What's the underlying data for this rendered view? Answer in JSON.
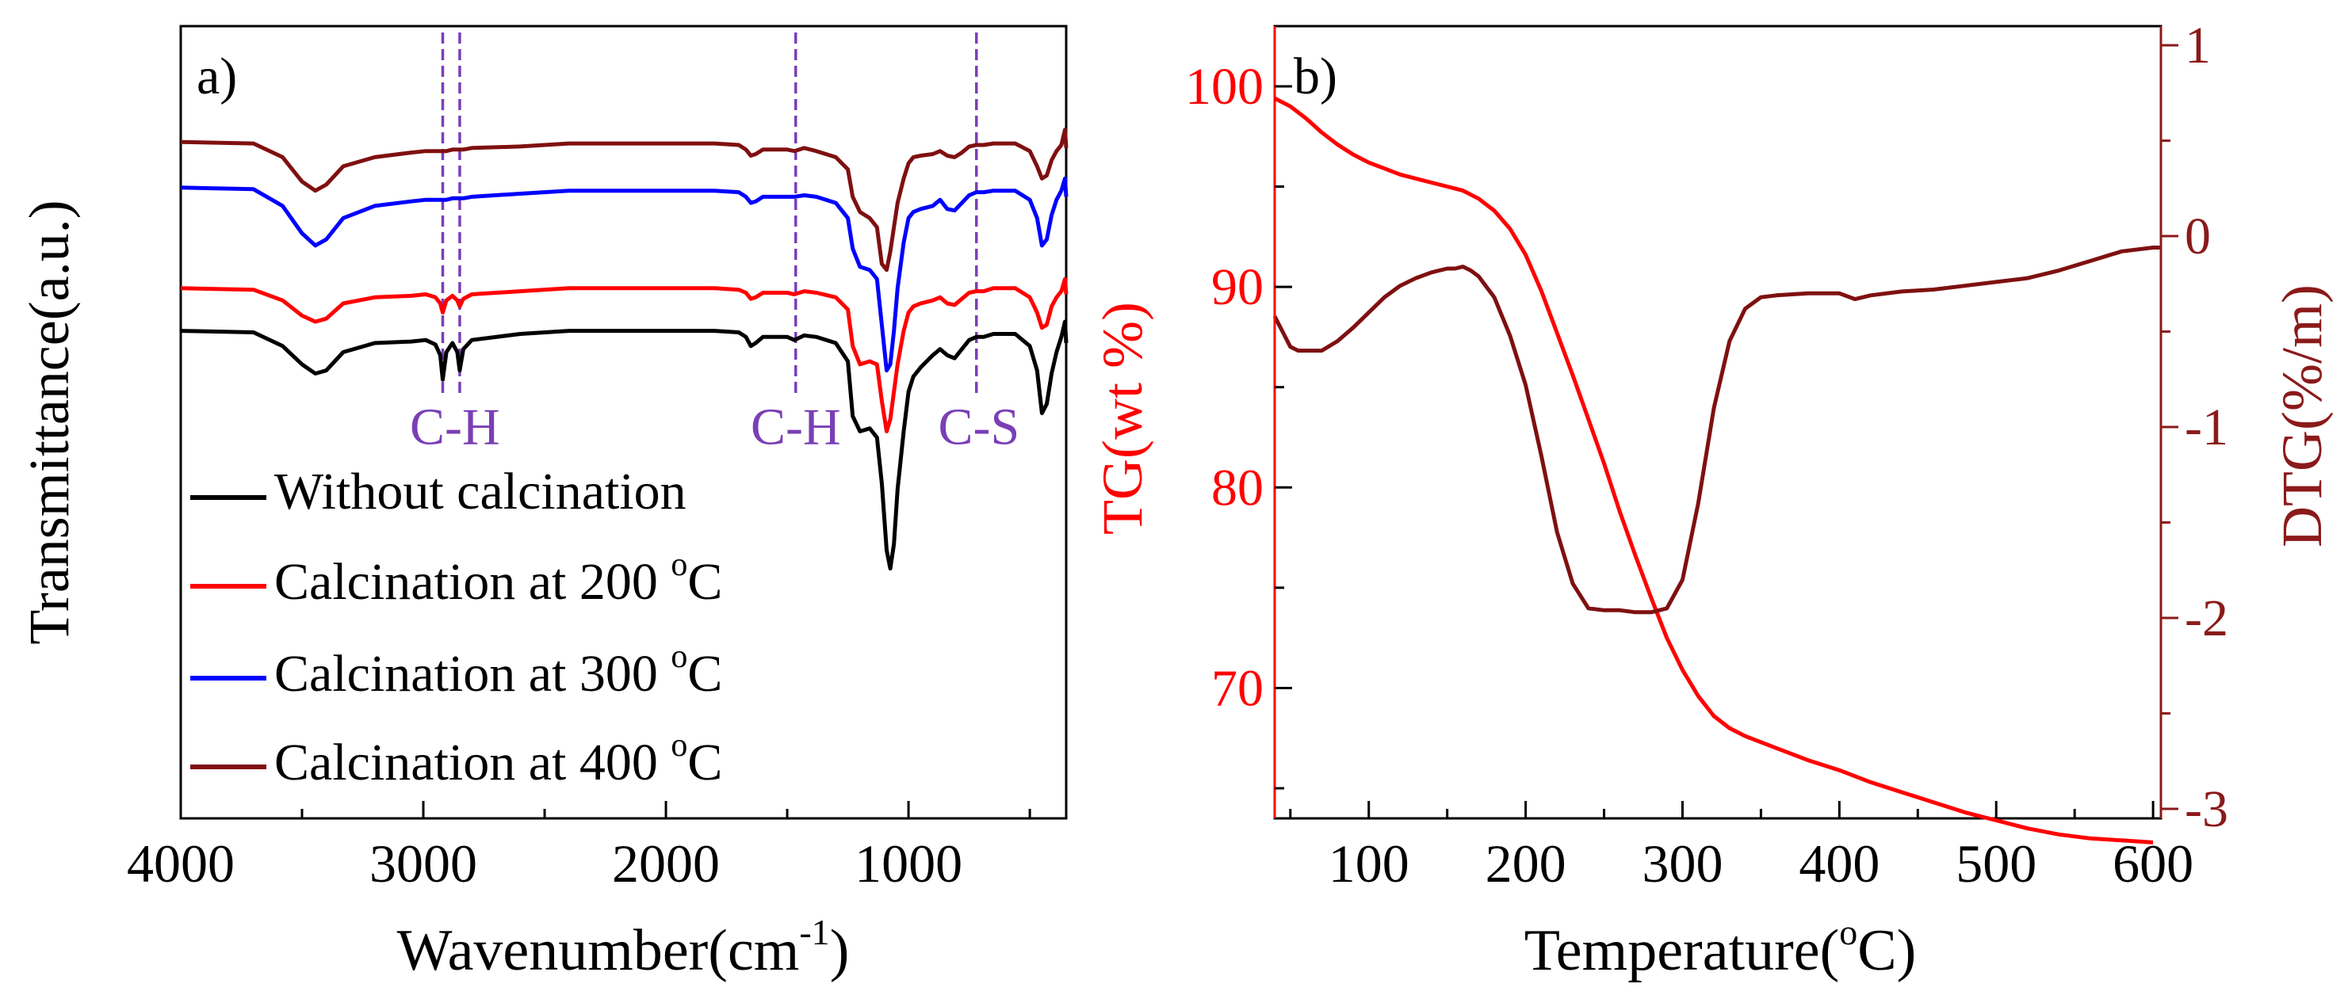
{
  "chart_data": [
    {
      "type": "line",
      "panel_label": "a)",
      "xlabel": "Wavenumber(cm",
      "xlabel_sup": "-1",
      "xlabel_close": ")",
      "ylabel": "Transmittance(a.u.)",
      "xlim": [
        4000,
        350
      ],
      "x_reversed": true,
      "y_ticks_shown": false,
      "xticks": [
        4000,
        3000,
        2000,
        1000
      ],
      "xtick_labels": [
        "4000",
        "3000",
        "2000",
        "1000"
      ],
      "ylim": [
        -1.6,
        1.0
      ],
      "legend_location": "bottom-left",
      "annotations": [
        {
          "text": "C-H",
          "x": 2870,
          "lines_at": [
            2920,
            2850
          ],
          "y": -0.33
        },
        {
          "text": "C-H",
          "x": 1465,
          "lines_at": [
            1465
          ],
          "y": -0.33
        },
        {
          "text": "C-S",
          "x": 710,
          "lines_at": [
            720
          ],
          "y": -0.33
        }
      ],
      "vline_color": "#7a3fb6",
      "series": [
        {
          "name": "Without calcination",
          "legend_label": "Without calcination",
          "color": "#000000",
          "offset": 0.0,
          "x": [
            4000,
            3700,
            3580,
            3500,
            3445,
            3400,
            3330,
            3200,
            3050,
            2990,
            2950,
            2930,
            2920,
            2905,
            2880,
            2860,
            2850,
            2835,
            2800,
            2600,
            2400,
            2000,
            1800,
            1700,
            1670,
            1650,
            1630,
            1600,
            1500,
            1470,
            1430,
            1380,
            1300,
            1250,
            1230,
            1200,
            1160,
            1130,
            1110,
            1090,
            1075,
            1060,
            1045,
            1020,
            1000,
            980,
            950,
            900,
            870,
            840,
            810,
            780,
            750,
            720,
            690,
            650,
            560,
            500,
            470,
            450,
            430,
            410,
            390,
            370,
            355,
            350
          ],
          "y": [
            0.0,
            -0.005,
            -0.05,
            -0.11,
            -0.14,
            -0.13,
            -0.07,
            -0.04,
            -0.035,
            -0.03,
            -0.045,
            -0.08,
            -0.16,
            -0.07,
            -0.04,
            -0.07,
            -0.13,
            -0.06,
            -0.03,
            -0.01,
            0.0,
            0.0,
            0.0,
            -0.005,
            -0.02,
            -0.05,
            -0.04,
            -0.02,
            -0.02,
            -0.03,
            -0.015,
            -0.02,
            -0.04,
            -0.1,
            -0.28,
            -0.33,
            -0.32,
            -0.35,
            -0.5,
            -0.72,
            -0.78,
            -0.7,
            -0.52,
            -0.33,
            -0.2,
            -0.15,
            -0.12,
            -0.08,
            -0.06,
            -0.08,
            -0.09,
            -0.06,
            -0.03,
            -0.02,
            -0.02,
            -0.01,
            -0.01,
            -0.05,
            -0.13,
            -0.27,
            -0.24,
            -0.14,
            -0.07,
            -0.02,
            0.03,
            -0.04
          ]
        },
        {
          "name": "Calcination at 200 °C",
          "legend_label": "Calcination at 200 ",
          "color": "#ff0000",
          "offset": 0.14,
          "x": [
            4000,
            3700,
            3580,
            3500,
            3445,
            3400,
            3330,
            3200,
            3050,
            2990,
            2950,
            2930,
            2920,
            2905,
            2880,
            2860,
            2850,
            2835,
            2800,
            2600,
            2400,
            2000,
            1800,
            1700,
            1670,
            1650,
            1630,
            1600,
            1500,
            1470,
            1430,
            1380,
            1300,
            1250,
            1230,
            1200,
            1160,
            1130,
            1110,
            1090,
            1075,
            1060,
            1045,
            1020,
            1000,
            980,
            950,
            900,
            870,
            840,
            810,
            780,
            750,
            720,
            690,
            650,
            560,
            500,
            470,
            450,
            430,
            410,
            390,
            370,
            355,
            350
          ],
          "y": [
            0.0,
            -0.005,
            -0.04,
            -0.09,
            -0.11,
            -0.1,
            -0.05,
            -0.03,
            -0.025,
            -0.02,
            -0.03,
            -0.05,
            -0.08,
            -0.04,
            -0.025,
            -0.04,
            -0.06,
            -0.035,
            -0.02,
            -0.01,
            0.0,
            0.0,
            0.0,
            -0.005,
            -0.015,
            -0.035,
            -0.03,
            -0.015,
            -0.015,
            -0.02,
            -0.01,
            -0.015,
            -0.03,
            -0.07,
            -0.19,
            -0.25,
            -0.24,
            -0.25,
            -0.37,
            -0.47,
            -0.43,
            -0.34,
            -0.25,
            -0.14,
            -0.08,
            -0.06,
            -0.05,
            -0.04,
            -0.03,
            -0.05,
            -0.055,
            -0.035,
            -0.015,
            -0.01,
            -0.01,
            0.0,
            0.0,
            -0.03,
            -0.08,
            -0.13,
            -0.12,
            -0.06,
            -0.03,
            -0.01,
            0.03,
            -0.02
          ]
        },
        {
          "name": "Calcination at 300 °C",
          "legend_label": "Calcination at 300 ",
          "color": "#0000ff",
          "offset": 0.47,
          "x": [
            4000,
            3700,
            3580,
            3500,
            3445,
            3400,
            3330,
            3200,
            3050,
            2990,
            2950,
            2930,
            2920,
            2905,
            2880,
            2860,
            2850,
            2835,
            2800,
            2600,
            2400,
            2000,
            1800,
            1700,
            1670,
            1650,
            1630,
            1600,
            1500,
            1470,
            1430,
            1380,
            1300,
            1250,
            1230,
            1200,
            1160,
            1130,
            1110,
            1090,
            1075,
            1060,
            1045,
            1020,
            1000,
            980,
            950,
            900,
            870,
            840,
            810,
            780,
            750,
            720,
            690,
            650,
            560,
            500,
            470,
            450,
            430,
            410,
            390,
            370,
            355,
            350
          ],
          "y": [
            0.0,
            -0.005,
            -0.06,
            -0.15,
            -0.19,
            -0.17,
            -0.1,
            -0.06,
            -0.045,
            -0.04,
            -0.04,
            -0.04,
            -0.04,
            -0.04,
            -0.035,
            -0.035,
            -0.035,
            -0.035,
            -0.03,
            -0.02,
            -0.01,
            -0.01,
            -0.01,
            -0.015,
            -0.03,
            -0.05,
            -0.045,
            -0.03,
            -0.03,
            -0.03,
            -0.025,
            -0.03,
            -0.05,
            -0.1,
            -0.2,
            -0.26,
            -0.27,
            -0.3,
            -0.45,
            -0.6,
            -0.58,
            -0.47,
            -0.33,
            -0.18,
            -0.1,
            -0.08,
            -0.07,
            -0.06,
            -0.04,
            -0.07,
            -0.075,
            -0.05,
            -0.025,
            -0.015,
            -0.015,
            -0.01,
            -0.01,
            -0.04,
            -0.1,
            -0.19,
            -0.17,
            -0.09,
            -0.04,
            -0.01,
            0.03,
            -0.03
          ]
        },
        {
          "name": "Calcination at 400 °C",
          "legend_label": "Calcination at 400 ",
          "color": "#7f1010",
          "offset": 0.62,
          "x": [
            4000,
            3700,
            3580,
            3500,
            3445,
            3400,
            3330,
            3200,
            3050,
            2990,
            2950,
            2930,
            2920,
            2905,
            2880,
            2860,
            2850,
            2835,
            2800,
            2600,
            2400,
            2000,
            1800,
            1700,
            1670,
            1650,
            1630,
            1600,
            1500,
            1470,
            1430,
            1380,
            1300,
            1250,
            1230,
            1200,
            1160,
            1130,
            1110,
            1090,
            1075,
            1060,
            1045,
            1020,
            1000,
            980,
            950,
            900,
            870,
            840,
            810,
            780,
            750,
            720,
            690,
            650,
            560,
            500,
            470,
            450,
            430,
            410,
            390,
            370,
            355,
            350
          ],
          "y": [
            0.0,
            -0.005,
            -0.05,
            -0.13,
            -0.16,
            -0.14,
            -0.08,
            -0.05,
            -0.035,
            -0.03,
            -0.03,
            -0.03,
            -0.03,
            -0.03,
            -0.025,
            -0.025,
            -0.025,
            -0.025,
            -0.02,
            -0.015,
            -0.005,
            -0.005,
            -0.005,
            -0.01,
            -0.025,
            -0.045,
            -0.04,
            -0.025,
            -0.025,
            -0.03,
            -0.02,
            -0.03,
            -0.05,
            -0.09,
            -0.18,
            -0.23,
            -0.25,
            -0.28,
            -0.4,
            -0.42,
            -0.36,
            -0.28,
            -0.2,
            -0.12,
            -0.07,
            -0.05,
            -0.045,
            -0.04,
            -0.03,
            -0.045,
            -0.05,
            -0.035,
            -0.015,
            -0.01,
            -0.01,
            -0.005,
            -0.005,
            -0.03,
            -0.08,
            -0.12,
            -0.11,
            -0.06,
            -0.03,
            -0.01,
            0.04,
            -0.02
          ]
        }
      ]
    },
    {
      "type": "line",
      "panel_label": "b)",
      "xlabel": "Temperature(",
      "xlabel_sup": "o",
      "xlabel_close": "C)",
      "ylabel_left": "TG(wt %)",
      "ylabel_right": "DTG(%/m)",
      "xlim": [
        40,
        605
      ],
      "xticks": [
        100,
        200,
        300,
        400,
        500,
        600
      ],
      "xtick_labels": [
        "100",
        "200",
        "300",
        "400",
        "500",
        "600"
      ],
      "ylim_left": [
        63.5,
        103
      ],
      "yticks_left": [
        70,
        80,
        90,
        100
      ],
      "ytick_labels_left": [
        "70",
        "80",
        "90",
        "100"
      ],
      "ylim_right": [
        -3.05,
        1.1
      ],
      "yticks_right": [
        -3,
        -2,
        -1,
        0,
        1
      ],
      "ytick_labels_right": [
        "-3",
        "-2",
        "-1",
        "0",
        "1"
      ],
      "left_axis_color": "#ff0000",
      "right_axis_color": "#8b1a1a",
      "series": [
        {
          "name": "TG",
          "axis": "left",
          "color": "#ff0000",
          "x": [
            40,
            50,
            60,
            70,
            80,
            90,
            100,
            110,
            120,
            130,
            140,
            150,
            160,
            170,
            180,
            190,
            200,
            210,
            220,
            230,
            240,
            250,
            260,
            270,
            280,
            290,
            300,
            310,
            320,
            330,
            340,
            360,
            380,
            400,
            420,
            440,
            460,
            480,
            500,
            520,
            540,
            560,
            580,
            600
          ],
          "y": [
            99.4,
            99.0,
            98.4,
            97.7,
            97.1,
            96.6,
            96.2,
            95.9,
            95.6,
            95.4,
            95.2,
            95.0,
            94.8,
            94.4,
            93.8,
            92.9,
            91.6,
            89.8,
            87.7,
            85.6,
            83.4,
            81.2,
            78.8,
            76.6,
            74.5,
            72.5,
            70.9,
            69.6,
            68.6,
            68.0,
            67.6,
            67.0,
            66.4,
            65.9,
            65.3,
            64.8,
            64.3,
            63.8,
            63.4,
            63.0,
            62.7,
            62.5,
            62.4,
            62.3
          ]
        },
        {
          "name": "DTG",
          "axis": "right",
          "color": "#7f1010",
          "x": [
            40,
            45,
            50,
            55,
            60,
            70,
            80,
            90,
            100,
            110,
            120,
            130,
            140,
            150,
            155,
            160,
            165,
            170,
            180,
            190,
            200,
            210,
            220,
            230,
            240,
            250,
            260,
            270,
            280,
            290,
            300,
            310,
            320,
            330,
            340,
            350,
            360,
            380,
            400,
            410,
            420,
            440,
            460,
            480,
            500,
            520,
            540,
            560,
            580,
            600,
            605
          ],
          "y": [
            -0.42,
            -0.5,
            -0.58,
            -0.6,
            -0.6,
            -0.6,
            -0.55,
            -0.48,
            -0.4,
            -0.32,
            -0.26,
            -0.22,
            -0.19,
            -0.17,
            -0.17,
            -0.16,
            -0.18,
            -0.21,
            -0.32,
            -0.52,
            -0.78,
            -1.15,
            -1.55,
            -1.82,
            -1.95,
            -1.96,
            -1.96,
            -1.97,
            -1.97,
            -1.95,
            -1.8,
            -1.4,
            -0.9,
            -0.55,
            -0.38,
            -0.32,
            -0.31,
            -0.3,
            -0.3,
            -0.33,
            -0.31,
            -0.29,
            -0.28,
            -0.26,
            -0.24,
            -0.22,
            -0.18,
            -0.13,
            -0.08,
            -0.06,
            -0.06
          ]
        }
      ]
    }
  ],
  "legend_superscript": "o",
  "legend_unit": "C"
}
